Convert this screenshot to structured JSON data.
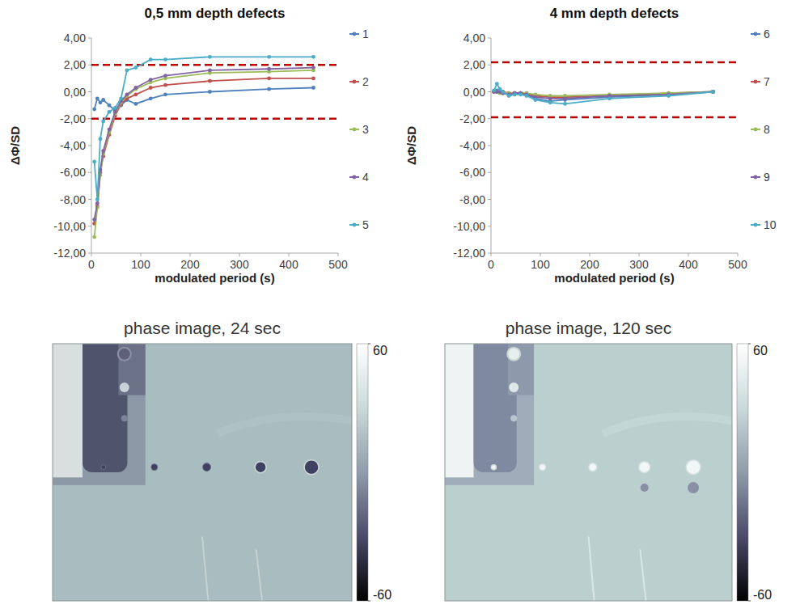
{
  "chart_data": [
    {
      "type": "line",
      "title": "0,5 mm depth defects",
      "x_label": "modulated period (s)",
      "y_label": "ΔΦ/SD",
      "x": [
        6,
        12,
        18,
        24,
        36,
        48,
        60,
        72,
        90,
        120,
        150,
        240,
        360,
        450
      ],
      "xlim": [
        0,
        500
      ],
      "xticks": [
        0,
        100,
        200,
        300,
        400,
        500
      ],
      "ylim": [
        -12,
        4
      ],
      "yticks": [
        {
          "value": -12,
          "label": "-12,00"
        },
        {
          "value": -10,
          "label": "-10,00"
        },
        {
          "value": -8,
          "label": "-8,00"
        },
        {
          "value": -6,
          "label": "-6,00"
        },
        {
          "value": -4,
          "label": "-4,00"
        },
        {
          "value": -2,
          "label": "-2,00"
        },
        {
          "value": 0,
          "label": "0,00"
        },
        {
          "value": 2,
          "label": "2,00"
        },
        {
          "value": 4,
          "label": "4,00"
        }
      ],
      "hlines": [
        2,
        -2
      ],
      "legend": "right",
      "marker": "circle",
      "series": [
        {
          "name": "1",
          "color": "#4f81bd",
          "values": [
            -1.3,
            -0.5,
            -0.8,
            -0.6,
            -1.0,
            -1.4,
            -1.0,
            -0.6,
            -0.9,
            -0.5,
            -0.2,
            0.0,
            0.2,
            0.3
          ]
        },
        {
          "name": "2",
          "color": "#c0504d",
          "values": [
            -9.8,
            -8.5,
            -6.0,
            -4.8,
            -3.2,
            -1.8,
            -0.9,
            -0.5,
            -0.2,
            0.3,
            0.5,
            0.8,
            1.0,
            1.0
          ]
        },
        {
          "name": "3",
          "color": "#9bbb59",
          "values": [
            -10.8,
            -8.6,
            -6.2,
            -4.6,
            -3.0,
            -1.6,
            -0.8,
            -0.3,
            0.2,
            0.7,
            1.0,
            1.4,
            1.5,
            1.6
          ]
        },
        {
          "name": "4",
          "color": "#8064a2",
          "values": [
            -9.5,
            -8.3,
            -5.8,
            -4.4,
            -2.8,
            -1.5,
            -0.7,
            -0.2,
            0.3,
            0.9,
            1.2,
            1.6,
            1.7,
            1.8
          ]
        },
        {
          "name": "5",
          "color": "#4bacc6",
          "values": [
            -5.2,
            -8.0,
            -3.5,
            -2.2,
            -1.5,
            -1.2,
            -0.5,
            1.6,
            1.8,
            2.4,
            2.4,
            2.6,
            2.6,
            2.6
          ]
        }
      ]
    },
    {
      "type": "line",
      "title": "4 mm depth defects",
      "x_label": "modulated period (s)",
      "y_label": "ΔΦ/SD",
      "x": [
        6,
        12,
        18,
        24,
        36,
        48,
        60,
        72,
        90,
        120,
        150,
        240,
        360,
        450
      ],
      "xlim": [
        0,
        500
      ],
      "xticks": [
        0,
        100,
        200,
        300,
        400,
        500
      ],
      "ylim": [
        -12,
        4
      ],
      "yticks": [
        {
          "value": -12,
          "label": "-12,00"
        },
        {
          "value": -10,
          "label": "-10,00"
        },
        {
          "value": -8,
          "label": "-8,00"
        },
        {
          "value": -6,
          "label": "-6,00"
        },
        {
          "value": -4,
          "label": "-4,00"
        },
        {
          "value": -2,
          "label": "-2,00"
        },
        {
          "value": 0,
          "label": "0,00"
        },
        {
          "value": 2,
          "label": "2,00"
        },
        {
          "value": 4,
          "label": "4,00"
        }
      ],
      "hlines": [
        2.2,
        -1.9
      ],
      "legend": "right",
      "marker": "circle",
      "series": [
        {
          "name": "6",
          "color": "#4f81bd",
          "values": [
            0.0,
            0.1,
            0.0,
            -0.1,
            -0.2,
            -0.1,
            -0.1,
            -0.2,
            -0.5,
            -0.7,
            -0.6,
            -0.4,
            -0.2,
            0.0
          ]
        },
        {
          "name": "7",
          "color": "#c0504d",
          "values": [
            0.0,
            0.0,
            0.0,
            0.0,
            -0.1,
            -0.1,
            -0.1,
            -0.1,
            -0.3,
            -0.4,
            -0.4,
            -0.3,
            -0.1,
            0.0
          ]
        },
        {
          "name": "8",
          "color": "#9bbb59",
          "values": [
            0.0,
            0.0,
            -0.1,
            -0.1,
            -0.1,
            -0.2,
            -0.1,
            -0.1,
            -0.2,
            -0.3,
            -0.3,
            -0.2,
            -0.1,
            0.0
          ]
        },
        {
          "name": "9",
          "color": "#8064a2",
          "values": [
            0.0,
            0.0,
            0.0,
            -0.1,
            -0.2,
            -0.1,
            -0.1,
            -0.2,
            -0.4,
            -0.5,
            -0.5,
            -0.3,
            -0.2,
            0.0
          ]
        },
        {
          "name": "10",
          "color": "#4bacc6",
          "values": [
            0.1,
            0.6,
            0.2,
            0.0,
            -0.3,
            -0.2,
            -0.2,
            -0.3,
            -0.6,
            -0.8,
            -0.9,
            -0.5,
            -0.3,
            0.0
          ]
        }
      ]
    },
    {
      "type": "image",
      "title": "phase image, 24 sec",
      "colorbar_lim": [
        -60,
        60
      ],
      "colorbar_ticks": [
        60,
        -60
      ]
    },
    {
      "type": "image",
      "title": "phase image, 120 sec",
      "colorbar_lim": [
        -60,
        60
      ],
      "colorbar_ticks": [
        60,
        -60
      ]
    }
  ]
}
